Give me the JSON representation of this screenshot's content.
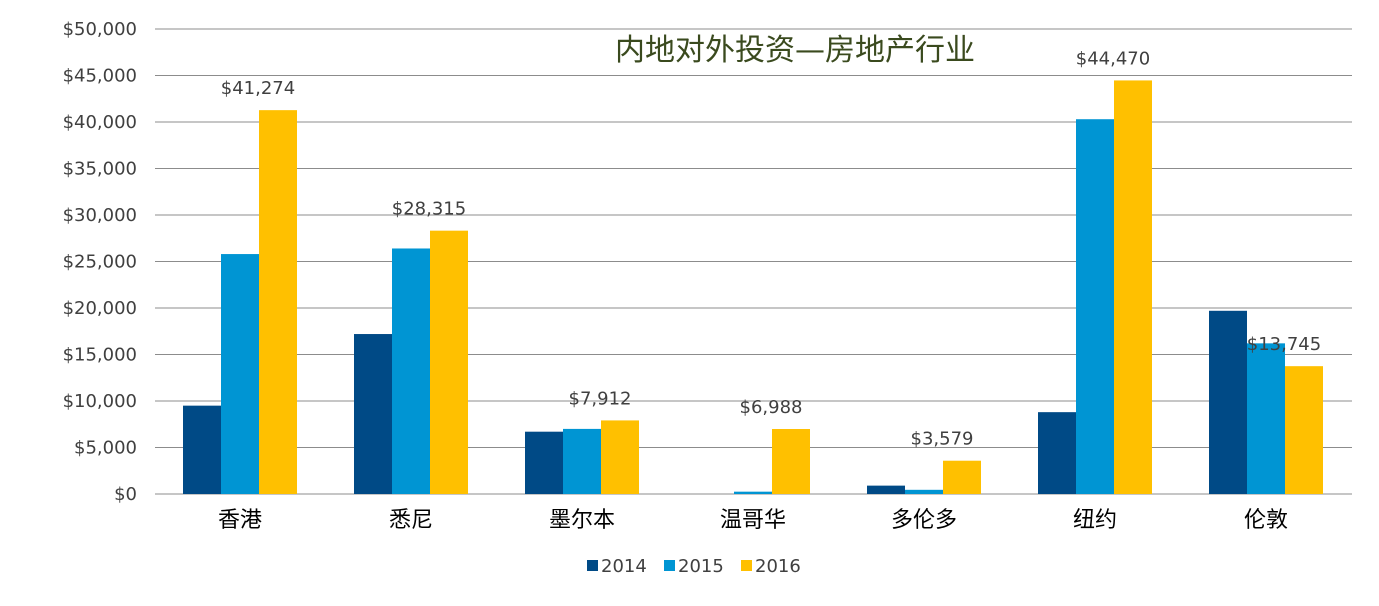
{
  "chart_data": {
    "type": "bar",
    "title": "内地对外投资—房地产行业",
    "categories": [
      "香港",
      "悉尼",
      "墨尔本",
      "温哥华",
      "多伦多",
      "纽约",
      "伦敦"
    ],
    "series": [
      {
        "name": "2014",
        "color": "#004a86",
        "values": [
          9500,
          17200,
          6700,
          0,
          900,
          8800,
          19700
        ]
      },
      {
        "name": "2015",
        "color": "#0095d3",
        "values": [
          25800,
          26400,
          7000,
          250,
          450,
          40300,
          16200
        ]
      },
      {
        "name": "2016",
        "color": "#ffc000",
        "values": [
          41274,
          28315,
          7912,
          6988,
          3579,
          44470,
          13745
        ]
      }
    ],
    "data_labels": [
      {
        "category": "香港",
        "series": "2016",
        "text": "$41,274"
      },
      {
        "category": "悉尼",
        "series": "2016",
        "text": "$28,315"
      },
      {
        "category": "墨尔本",
        "series": "2016",
        "text": "$7,912"
      },
      {
        "category": "温哥华",
        "series": "2016",
        "text": "$6,988"
      },
      {
        "category": "多伦多",
        "series": "2016",
        "text": "$3,579"
      },
      {
        "category": "纽约",
        "series": "2016",
        "text": "$44,470"
      },
      {
        "category": "伦敦",
        "series": "2016",
        "text": "$13,745"
      }
    ],
    "ylim": [
      0,
      50000
    ],
    "yticks": [
      0,
      5000,
      10000,
      15000,
      20000,
      25000,
      30000,
      35000,
      40000,
      45000,
      50000
    ],
    "ytick_labels": [
      "$0",
      "$5,000",
      "$10,000",
      "$15,000",
      "$20,000",
      "$25,000",
      "$30,000",
      "$35,000",
      "$40,000",
      "$45,000",
      "$50,000"
    ],
    "xlabel": "",
    "ylabel": "",
    "grid": true,
    "legend_position": "bottom-center"
  }
}
